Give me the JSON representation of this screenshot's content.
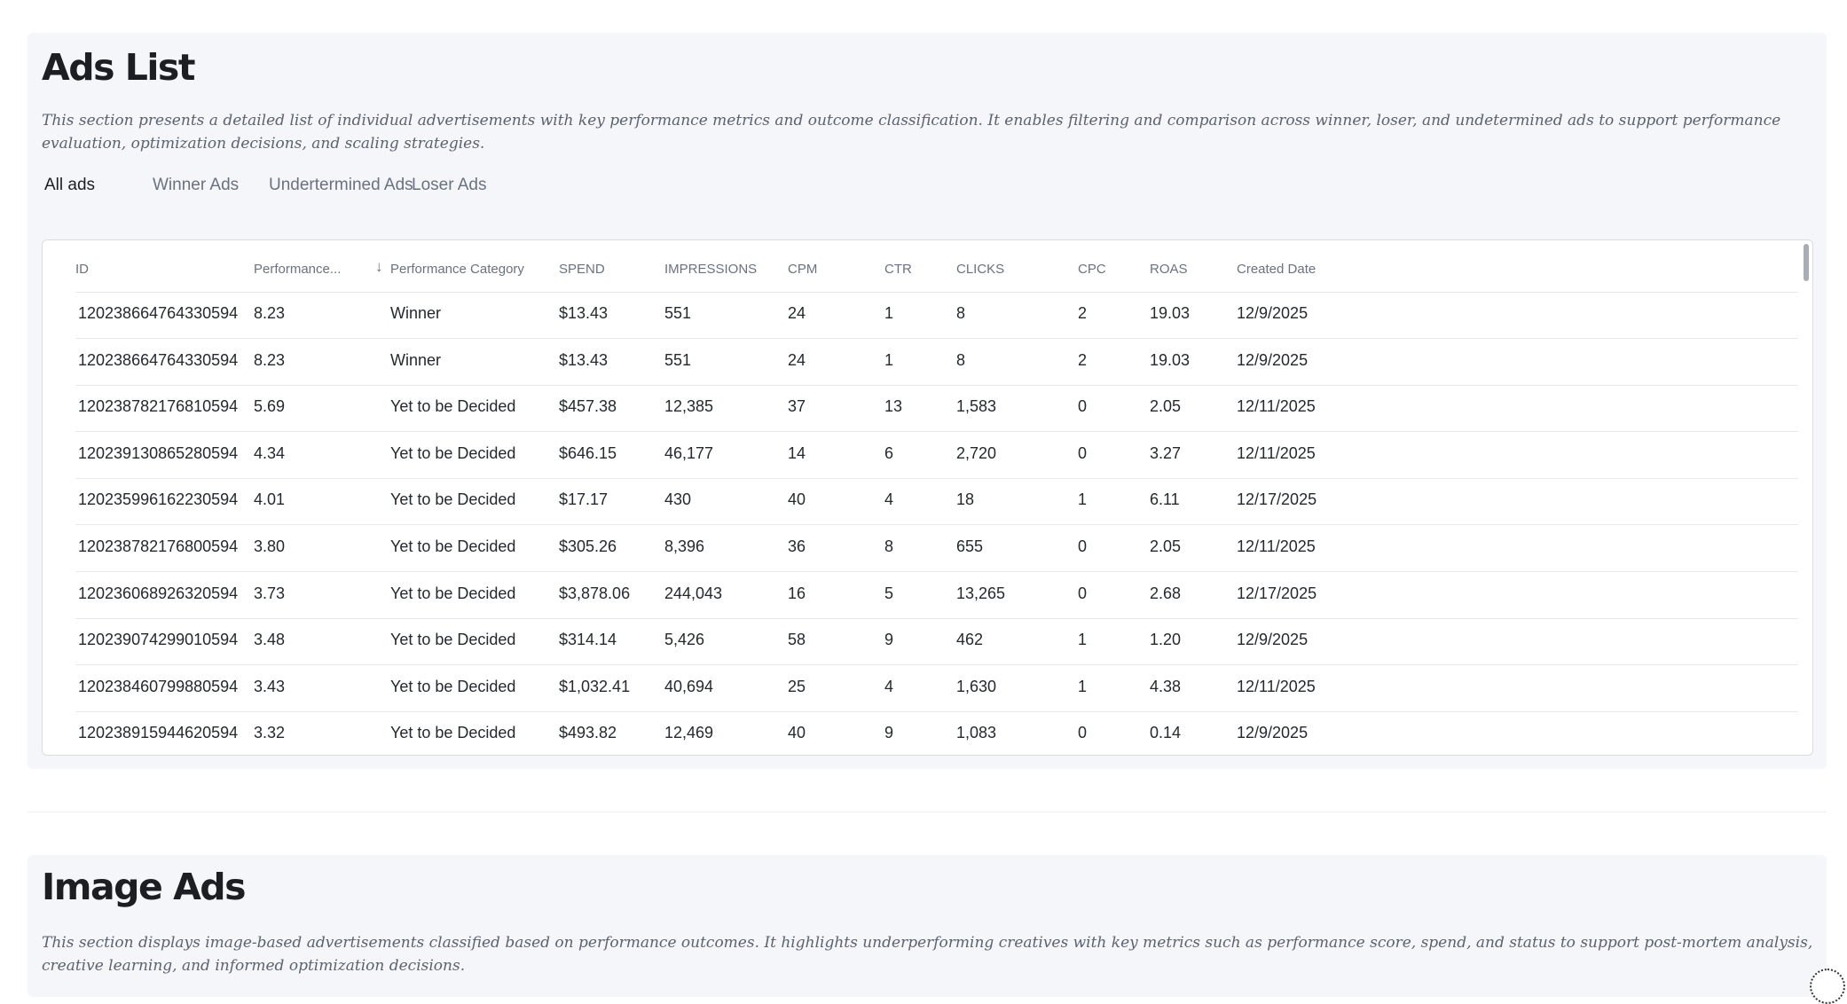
{
  "ads_section": {
    "title": "Ads List",
    "description": "This section presents a detailed list of individual advertisements with key performance metrics and outcome classification. It enables filtering and comparison across winner, loser, and undetermined ads to support performance evaluation, optimization decisions, and scaling strategies.",
    "tabs": [
      {
        "label": "All ads",
        "active": true
      },
      {
        "label": "Winner Ads",
        "active": false
      },
      {
        "label": "Undertermined Ads",
        "active": false
      },
      {
        "label": "Loser Ads",
        "active": false
      }
    ],
    "table": {
      "columns": [
        "ID",
        "Performance...",
        "Performance Category",
        "SPEND",
        "IMPRESSIONS",
        "CPM",
        "CTR",
        "CLICKS",
        "CPC",
        "ROAS",
        "Created Date"
      ],
      "sort_icon": "arrow-down-icon",
      "rows": [
        [
          "120238664764330594",
          "8.23",
          "Winner",
          "$13.43",
          "551",
          "24",
          "1",
          "8",
          "2",
          "19.03",
          "12/9/2025"
        ],
        [
          "120238664764330594",
          "8.23",
          "Winner",
          "$13.43",
          "551",
          "24",
          "1",
          "8",
          "2",
          "19.03",
          "12/9/2025"
        ],
        [
          "120238782176810594",
          "5.69",
          "Yet to be Decided",
          "$457.38",
          "12,385",
          "37",
          "13",
          "1,583",
          "0",
          "2.05",
          "12/11/2025"
        ],
        [
          "120239130865280594",
          "4.34",
          "Yet to be Decided",
          "$646.15",
          "46,177",
          "14",
          "6",
          "2,720",
          "0",
          "3.27",
          "12/11/2025"
        ],
        [
          "120235996162230594",
          "4.01",
          "Yet to be Decided",
          "$17.17",
          "430",
          "40",
          "4",
          "18",
          "1",
          "6.11",
          "12/17/2025"
        ],
        [
          "120238782176800594",
          "3.80",
          "Yet to be Decided",
          "$305.26",
          "8,396",
          "36",
          "8",
          "655",
          "0",
          "2.05",
          "12/11/2025"
        ],
        [
          "120236068926320594",
          "3.73",
          "Yet to be Decided",
          "$3,878.06",
          "244,043",
          "16",
          "5",
          "13,265",
          "0",
          "2.68",
          "12/17/2025"
        ],
        [
          "120239074299010594",
          "3.48",
          "Yet to be Decided",
          "$314.14",
          "5,426",
          "58",
          "9",
          "462",
          "1",
          "1.20",
          "12/9/2025"
        ],
        [
          "120238460799880594",
          "3.43",
          "Yet to be Decided",
          "$1,032.41",
          "40,694",
          "25",
          "4",
          "1,630",
          "1",
          "4.38",
          "12/11/2025"
        ],
        [
          "120238915944620594",
          "3.32",
          "Yet to be Decided",
          "$493.82",
          "12,469",
          "40",
          "9",
          "1,083",
          "0",
          "0.14",
          "12/9/2025"
        ]
      ]
    }
  },
  "image_section": {
    "title": "Image Ads",
    "description": "This section displays image-based advertisements classified based on performance outcomes. It highlights underperforming creatives with key metrics such as performance score, spend, and status to support post-mortem analysis, creative learning, and informed optimization decisions."
  },
  "colors": {
    "page_bg": "#ffffff",
    "section_bg": "#f5f6f9",
    "text": "#1f2328",
    "muted": "#6a7180"
  }
}
